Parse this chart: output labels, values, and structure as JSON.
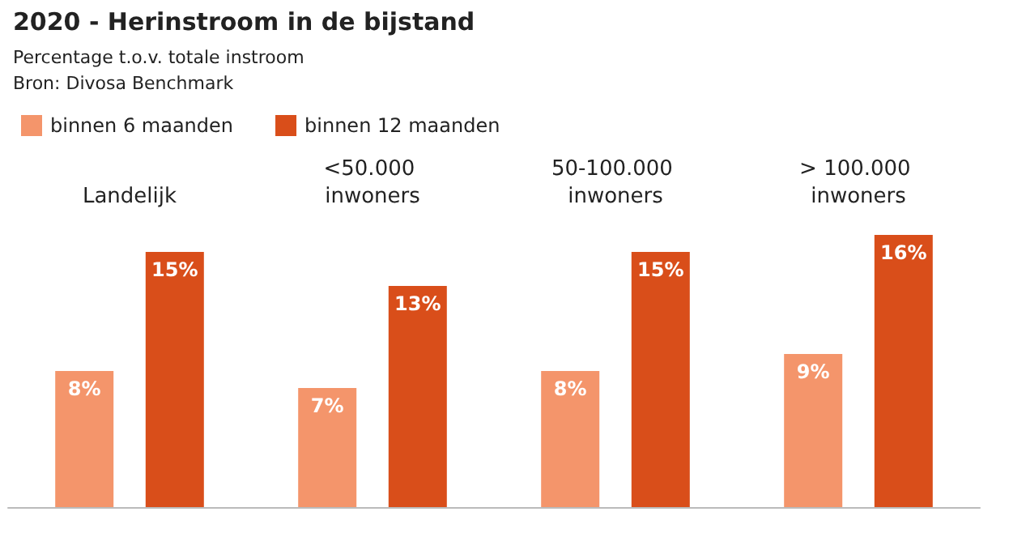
{
  "chart_data": {
    "type": "bar",
    "title": "2020 - Herinstroom in de bijstand",
    "subtitle": "Percentage t.o.v. totale instroom",
    "annotations": [
      "Bron: Divosa Benchmark"
    ],
    "categories": [
      "Landelijk",
      "<50.000 inwoners",
      "50-100.000 inwoners",
      "> 100.000 inwoners"
    ],
    "series": [
      {
        "name": "binnen 6 maanden",
        "color": "#f4956b",
        "values": [
          8,
          7,
          8,
          9
        ],
        "value_labels": [
          "8%",
          "7%",
          "8%",
          "9%"
        ]
      },
      {
        "name": "binnen 12 maanden",
        "color": "#d94e1a",
        "values": [
          15,
          13,
          15,
          16
        ],
        "value_labels": [
          "15%",
          "13%",
          "15%",
          "16%"
        ]
      }
    ],
    "legend": "top left"
  }
}
